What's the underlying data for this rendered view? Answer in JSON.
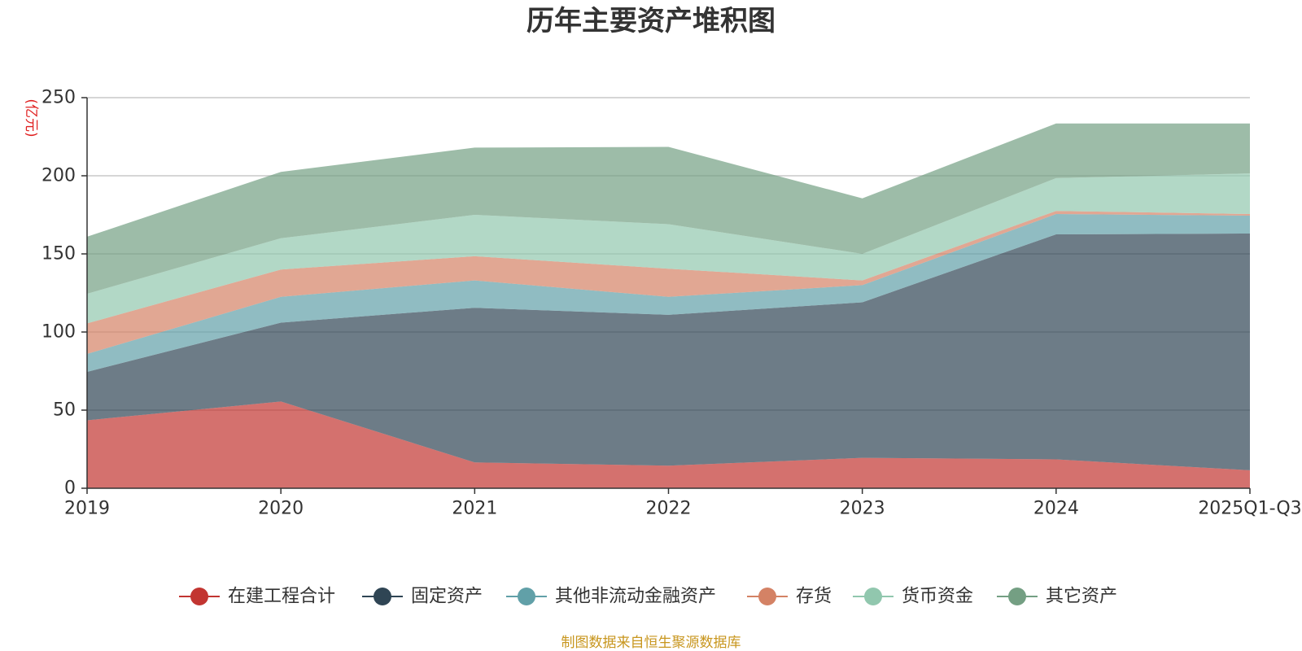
{
  "chart_data": {
    "type": "area",
    "stacked": true,
    "title": "历年主要资产堆积图",
    "unit_label": "(亿元)",
    "categories": [
      "2019",
      "2020",
      "2021",
      "2022",
      "2023",
      "2024",
      "2025Q1-Q3"
    ],
    "ylim": [
      0,
      250
    ],
    "yticks": [
      0,
      50,
      100,
      150,
      200,
      250
    ],
    "grid": true,
    "legend_position": "bottom",
    "series": [
      {
        "name": "在建工程合计",
        "color": "#c23531",
        "values": [
          43.5,
          55.5,
          16.5,
          14.5,
          19.5,
          18.5,
          11.5
        ]
      },
      {
        "name": "固定资产",
        "color": "#2f4554",
        "values": [
          31,
          50.5,
          99,
          96.5,
          99.5,
          144,
          151.5
        ]
      },
      {
        "name": "其他非流动金融资产",
        "color": "#61a0a8",
        "values": [
          11.5,
          16.5,
          17.5,
          11.5,
          11,
          13,
          11.5
        ]
      },
      {
        "name": "存货",
        "color": "#d48265",
        "values": [
          19.5,
          17.5,
          15.5,
          18,
          3,
          2,
          1
        ]
      },
      {
        "name": "货币资金",
        "color": "#91c7ae",
        "values": [
          19,
          20,
          26.5,
          28.5,
          17,
          21,
          26
        ]
      },
      {
        "name": "其它资产",
        "color": "#749f83",
        "values": [
          36.5,
          42.5,
          43,
          49.5,
          35.5,
          35,
          32
        ]
      }
    ]
  },
  "footer": {
    "source": "制图数据来自恒生聚源数据库"
  }
}
